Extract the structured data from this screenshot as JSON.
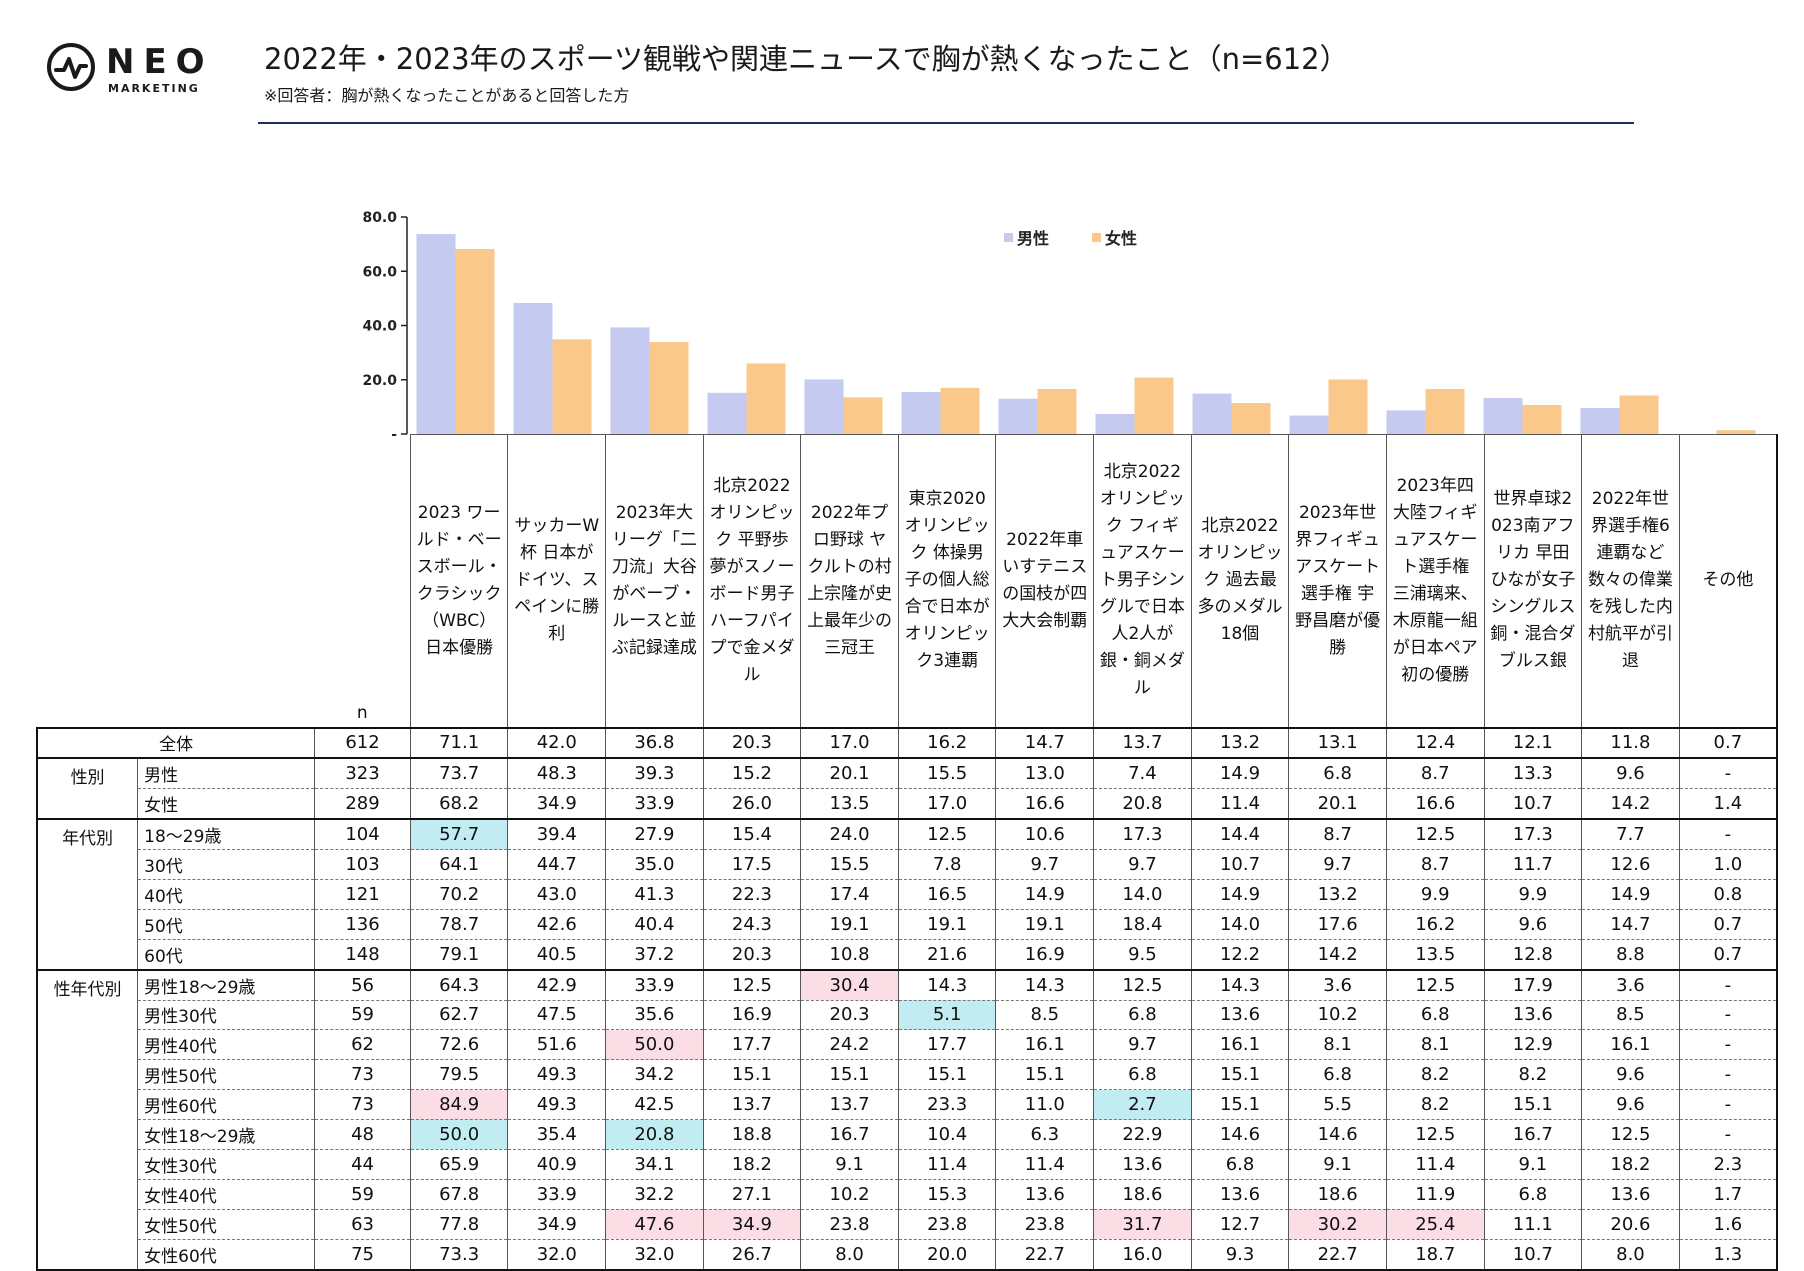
{
  "logo": {
    "word": "NEO",
    "sub": "MARKETING"
  },
  "title": "2022年・2023年のスポーツ観戦や関連ニュースで胸が熱くなったこと（n=612）",
  "subtitle": "※回答者：胸が熱くなったことがあると回答した方",
  "colors": {
    "male": "#c5cbf0",
    "female": "#f9c88a",
    "highlight_high": "#fbdde5",
    "highlight_low": "#c1ecf1",
    "rule": "#1f2f5c"
  },
  "chart_data": {
    "type": "bar",
    "categories": [
      "2023 ワールド・ベースボール・クラシック（WBC）日本優勝",
      "サッカーW杯 日本がドイツ、スペインに勝利",
      "2023年大リーグ「二刀流」大谷がベーブ・ルースと並ぶ記録達成",
      "北京2022 オリンピック 平野歩夢がスノーボード男子ハーフパイプで金メダル",
      "2022年プロ野球 ヤクルトの村上宗隆が史上最年少の三冠王",
      "東京2020 オリンピック 体操男子の個人総合で日本がオリンピック3連覇",
      "2022年車いすテニスの国枝が四大大会制覇",
      "北京2022オリンピック フィギュアスケート男子シングルで日本人2人が銀・銅メダル",
      "北京2022 オリンピック 過去最多のメダル18個",
      "2023年世界フィギュアスケート選手権 宇野昌磨が優勝",
      "2023年四大陸フィギュアスケート選手権 三浦璃来、木原龍一組が日本ペア初の優勝",
      "世界卓球2023南アフリカ 早田ひなが女子シングルス銅・混合ダブルス銀",
      "2022年世界選手権6連覇など数々の偉業を残した内村航平が引退",
      "その他"
    ],
    "series": [
      {
        "name": "男性",
        "values": [
          73.7,
          48.3,
          39.3,
          15.2,
          20.1,
          15.5,
          13.0,
          7.4,
          14.9,
          6.8,
          8.7,
          13.3,
          9.6,
          0
        ]
      },
      {
        "name": "女性",
        "values": [
          68.2,
          34.9,
          33.9,
          26.0,
          13.5,
          17.0,
          16.6,
          20.8,
          11.4,
          20.1,
          16.6,
          10.7,
          14.2,
          1.4
        ]
      }
    ],
    "ylim": [
      0,
      80
    ],
    "yticks": [
      "80.0",
      "60.0",
      "40.0",
      "20.0",
      "-"
    ],
    "legend": "top-center"
  },
  "table": {
    "n_header": "n",
    "headers": [
      "2023 ワールド・ベースボール・クラシック（WBC）日本優勝",
      "サッカーW杯 日本がドイツ、スペインに勝利",
      "2023年大リーグ「二刀流」大谷がベーブ・ルースと並ぶ記録達成",
      "北京2022 オリンピック 平野歩夢がスノーボード男子ハーフパイプで金メダル",
      "2022年プロ野球 ヤクルトの村上宗隆が史上最年少の三冠王",
      "東京2020 オリンピック 体操男子の個人総合で日本がオリンピック3連覇",
      "2022年車いすテニスの国枝が四大大会制覇",
      "北京2022オリンピック フィギュアスケート男子シングルで日本人2人が銀・銅メダル",
      "北京2022 オリンピック 過去最多のメダル18個",
      "2023年世界フィギュアスケート選手権 宇野昌磨が優勝",
      "2023年四大陸フィギュアスケート選手権 三浦璃来、木原龍一組が日本ペア初の優勝",
      "世界卓球2023南アフリカ 早田ひなが女子シングルス銅・混合ダブルス銀",
      "2022年世界選手権6連覇など数々の偉業を残した内村航平が引退",
      "その他"
    ],
    "rows": [
      {
        "group": "",
        "label": "全体",
        "n": "612",
        "values": [
          "71.1",
          "42.0",
          "36.8",
          "20.3",
          "17.0",
          "16.2",
          "14.7",
          "13.7",
          "13.2",
          "13.1",
          "12.4",
          "12.1",
          "11.8",
          "0.7"
        ]
      },
      {
        "group": "性別",
        "label": "男性",
        "n": "323",
        "values": [
          "73.7",
          "48.3",
          "39.3",
          "15.2",
          "20.1",
          "15.5",
          "13.0",
          "7.4",
          "14.9",
          "6.8",
          "8.7",
          "13.3",
          "9.6",
          "-"
        ]
      },
      {
        "group": "",
        "label": "女性",
        "n": "289",
        "values": [
          "68.2",
          "34.9",
          "33.9",
          "26.0",
          "13.5",
          "17.0",
          "16.6",
          "20.8",
          "11.4",
          "20.1",
          "16.6",
          "10.7",
          "14.2",
          "1.4"
        ]
      },
      {
        "group": "年代別",
        "label": "18～29歳",
        "n": "104",
        "values": [
          "57.7",
          "39.4",
          "27.9",
          "15.4",
          "24.0",
          "12.5",
          "10.6",
          "17.3",
          "14.4",
          "8.7",
          "12.5",
          "17.3",
          "7.7",
          "-"
        ]
      },
      {
        "group": "",
        "label": "30代",
        "n": "103",
        "values": [
          "64.1",
          "44.7",
          "35.0",
          "17.5",
          "15.5",
          "7.8",
          "9.7",
          "9.7",
          "10.7",
          "9.7",
          "8.7",
          "11.7",
          "12.6",
          "1.0"
        ]
      },
      {
        "group": "",
        "label": "40代",
        "n": "121",
        "values": [
          "70.2",
          "43.0",
          "41.3",
          "22.3",
          "17.4",
          "16.5",
          "14.9",
          "14.0",
          "14.9",
          "13.2",
          "9.9",
          "9.9",
          "14.9",
          "0.8"
        ]
      },
      {
        "group": "",
        "label": "50代",
        "n": "136",
        "values": [
          "78.7",
          "42.6",
          "40.4",
          "24.3",
          "19.1",
          "19.1",
          "19.1",
          "18.4",
          "14.0",
          "17.6",
          "16.2",
          "9.6",
          "14.7",
          "0.7"
        ]
      },
      {
        "group": "",
        "label": "60代",
        "n": "148",
        "values": [
          "79.1",
          "40.5",
          "37.2",
          "20.3",
          "10.8",
          "21.6",
          "16.9",
          "9.5",
          "12.2",
          "14.2",
          "13.5",
          "12.8",
          "8.8",
          "0.7"
        ]
      },
      {
        "group": "性年代別",
        "label": "男性18～29歳",
        "n": "56",
        "values": [
          "64.3",
          "42.9",
          "33.9",
          "12.5",
          "30.4",
          "14.3",
          "14.3",
          "12.5",
          "14.3",
          "3.6",
          "12.5",
          "17.9",
          "3.6",
          "-"
        ]
      },
      {
        "group": "",
        "label": "男性30代",
        "n": "59",
        "values": [
          "62.7",
          "47.5",
          "35.6",
          "16.9",
          "20.3",
          "5.1",
          "8.5",
          "6.8",
          "13.6",
          "10.2",
          "6.8",
          "13.6",
          "8.5",
          "-"
        ]
      },
      {
        "group": "",
        "label": "男性40代",
        "n": "62",
        "values": [
          "72.6",
          "51.6",
          "50.0",
          "17.7",
          "24.2",
          "17.7",
          "16.1",
          "9.7",
          "16.1",
          "8.1",
          "8.1",
          "12.9",
          "16.1",
          "-"
        ]
      },
      {
        "group": "",
        "label": "男性50代",
        "n": "73",
        "values": [
          "79.5",
          "49.3",
          "34.2",
          "15.1",
          "15.1",
          "15.1",
          "15.1",
          "6.8",
          "15.1",
          "6.8",
          "8.2",
          "8.2",
          "9.6",
          "-"
        ]
      },
      {
        "group": "",
        "label": "男性60代",
        "n": "73",
        "values": [
          "84.9",
          "49.3",
          "42.5",
          "13.7",
          "13.7",
          "23.3",
          "11.0",
          "2.7",
          "15.1",
          "5.5",
          "8.2",
          "15.1",
          "9.6",
          "-"
        ]
      },
      {
        "group": "",
        "label": "女性18～29歳",
        "n": "48",
        "values": [
          "50.0",
          "35.4",
          "20.8",
          "18.8",
          "16.7",
          "10.4",
          "6.3",
          "22.9",
          "14.6",
          "14.6",
          "12.5",
          "16.7",
          "12.5",
          "-"
        ]
      },
      {
        "group": "",
        "label": "女性30代",
        "n": "44",
        "values": [
          "65.9",
          "40.9",
          "34.1",
          "18.2",
          "9.1",
          "11.4",
          "11.4",
          "13.6",
          "6.8",
          "9.1",
          "11.4",
          "9.1",
          "18.2",
          "2.3"
        ]
      },
      {
        "group": "",
        "label": "女性40代",
        "n": "59",
        "values": [
          "67.8",
          "33.9",
          "32.2",
          "27.1",
          "10.2",
          "15.3",
          "13.6",
          "18.6",
          "13.6",
          "18.6",
          "11.9",
          "6.8",
          "13.6",
          "1.7"
        ]
      },
      {
        "group": "",
        "label": "女性50代",
        "n": "63",
        "values": [
          "77.8",
          "34.9",
          "47.6",
          "34.9",
          "23.8",
          "23.8",
          "23.8",
          "31.7",
          "12.7",
          "30.2",
          "25.4",
          "11.1",
          "20.6",
          "1.6"
        ]
      },
      {
        "group": "",
        "label": "女性60代",
        "n": "75",
        "values": [
          "73.3",
          "32.0",
          "32.0",
          "26.7",
          "8.0",
          "20.0",
          "22.7",
          "16.0",
          "9.3",
          "22.7",
          "18.7",
          "10.7",
          "8.0",
          "1.3"
        ]
      }
    ],
    "highlights_high": [
      [
        12,
        0
      ],
      [
        16,
        2
      ],
      [
        16,
        3
      ],
      [
        8,
        4
      ],
      [
        16,
        7
      ],
      [
        16,
        9
      ],
      [
        16,
        10
      ],
      [
        10,
        2
      ]
    ],
    "highlights_low": [
      [
        3,
        0
      ],
      [
        13,
        0
      ],
      [
        13,
        2
      ],
      [
        9,
        5
      ],
      [
        12,
        7
      ]
    ]
  }
}
